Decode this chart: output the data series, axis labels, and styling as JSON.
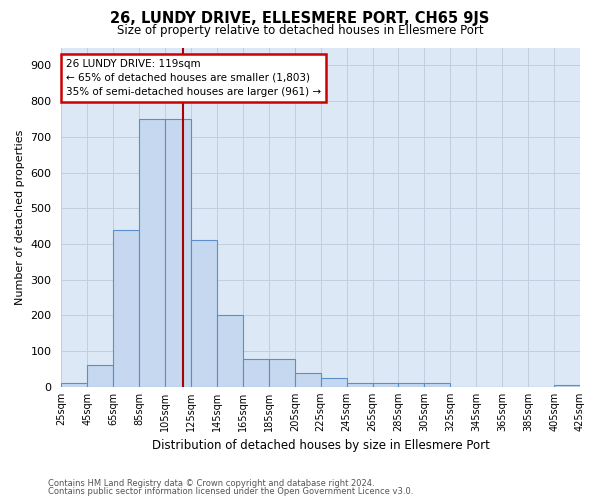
{
  "title": "26, LUNDY DRIVE, ELLESMERE PORT, CH65 9JS",
  "subtitle": "Size of property relative to detached houses in Ellesmere Port",
  "xlabel": "Distribution of detached houses by size in Ellesmere Port",
  "ylabel": "Number of detached properties",
  "footer_line1": "Contains HM Land Registry data © Crown copyright and database right 2024.",
  "footer_line2": "Contains public sector information licensed under the Open Government Licence v3.0.",
  "bin_labels": [
    "25sqm",
    "45sqm",
    "65sqm",
    "85sqm",
    "105sqm",
    "125sqm",
    "145sqm",
    "165sqm",
    "185sqm",
    "205sqm",
    "225sqm",
    "245sqm",
    "265sqm",
    "285sqm",
    "305sqm",
    "325sqm",
    "345sqm",
    "365sqm",
    "385sqm",
    "405sqm",
    "425sqm"
  ],
  "bar_values": [
    10,
    60,
    440,
    750,
    750,
    410,
    200,
    78,
    78,
    40,
    25,
    12,
    12,
    12,
    10,
    0,
    0,
    0,
    0,
    5
  ],
  "bar_color": "#c5d8ef",
  "bar_edge_color": "#5b8fc9",
  "grid_color": "#c0cede",
  "bg_color": "#dce8f5",
  "annotation_line1": "26 LUNDY DRIVE: 119sqm",
  "annotation_line2": "← 65% of detached houses are smaller (1,803)",
  "annotation_line3": "35% of semi-detached houses are larger (961) →",
  "annotation_box_facecolor": "#ffffff",
  "annotation_box_edgecolor": "#cc0000",
  "vline_color": "#aa0000",
  "vline_x_index": 4.7,
  "ylim": [
    0,
    950
  ],
  "yticks": [
    0,
    100,
    200,
    300,
    400,
    500,
    600,
    700,
    800,
    900
  ],
  "n_bars": 20
}
